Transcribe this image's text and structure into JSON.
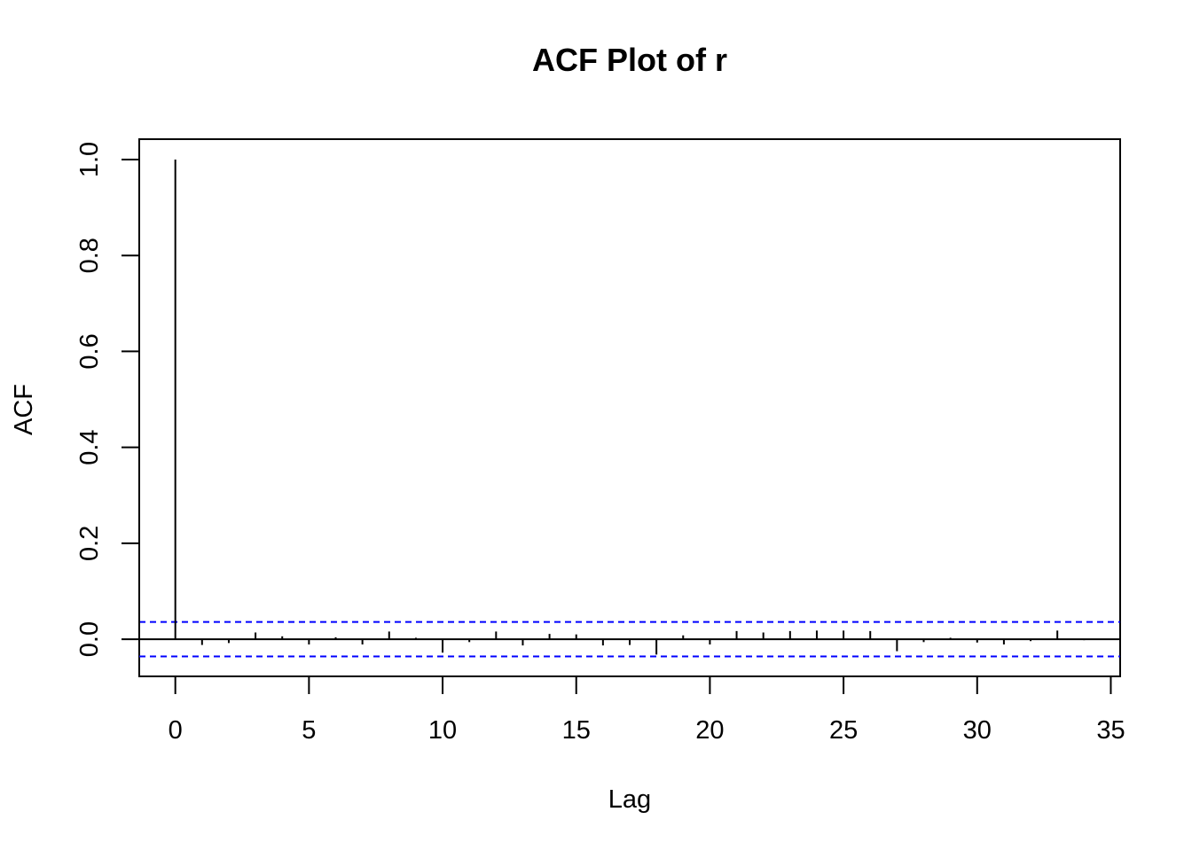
{
  "chart_data": {
    "type": "bar",
    "title": "ACF Plot of  r",
    "xlabel": "Lag",
    "ylabel": "ACF",
    "xlim": [
      -1.35,
      35.35
    ],
    "ylim": [
      -0.0775,
      1.0425
    ],
    "x_ticks": [
      0,
      5,
      10,
      15,
      20,
      25,
      30,
      35
    ],
    "x_tick_labels": [
      "0",
      "5",
      "10",
      "15",
      "20",
      "25",
      "30",
      "35"
    ],
    "y_ticks": [
      0.0,
      0.2,
      0.4,
      0.6,
      0.8,
      1.0
    ],
    "y_tick_labels": [
      "0.0",
      "0.2",
      "0.4",
      "0.6",
      "0.8",
      "1.0"
    ],
    "lags": [
      0,
      1,
      2,
      3,
      4,
      5,
      6,
      7,
      8,
      9,
      10,
      11,
      12,
      13,
      14,
      15,
      16,
      17,
      18,
      19,
      20,
      21,
      22,
      23,
      24,
      25,
      26,
      27,
      28,
      29,
      30,
      31,
      32,
      33,
      34
    ],
    "acf": [
      1.0,
      -0.012,
      -0.008,
      0.014,
      0.006,
      -0.011,
      0.004,
      -0.011,
      0.016,
      0.003,
      -0.028,
      -0.006,
      0.016,
      -0.013,
      0.011,
      0.01,
      -0.013,
      -0.012,
      -0.032,
      0.008,
      -0.011,
      0.017,
      0.014,
      0.017,
      0.018,
      0.018,
      0.017,
      -0.025,
      -0.006,
      0.003,
      -0.007,
      -0.011,
      -0.004,
      0.018,
      -0.002
    ],
    "confidence_bound": 0.036,
    "colors": {
      "bars": "#000000",
      "confidence_lines": "#0000ff",
      "zero_line": "#000000"
    },
    "grid": false
  }
}
